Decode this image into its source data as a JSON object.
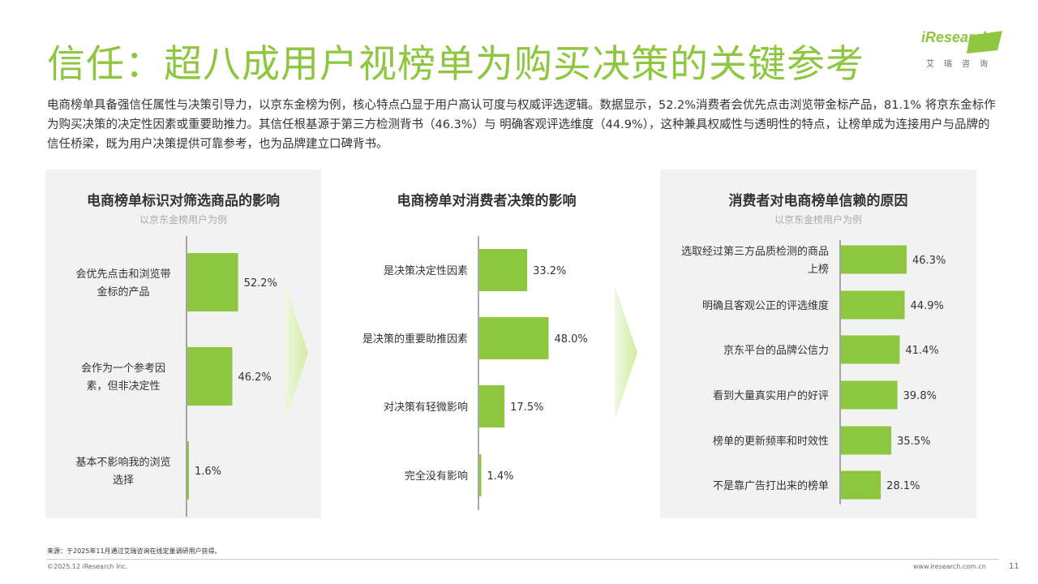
{
  "header": {
    "title": "信任：超八成用户视榜单为购买决策的关键参考",
    "logo_text": "iResearch",
    "logo_sub": "艾瑞咨询"
  },
  "intro": {
    "text": "电商榜单具备强信任属性与决策引导力，以京东金榜为例，核心特点凸显于用户高认可度与权威评选逻辑。数据显示，52.2%消费者会优先点击浏览带金标产品，81.1% 将京东金标作为购买决策的决定性因素或重要助推力。其信任根基源于第三方检测背书（46.3%）与 明确客观评选维度（44.9%），这种兼具权威性与透明性的特点，让榜单成为连接用户与品牌的信任桥梁，既为用户决策提供可靠参考，也为品牌建立口碑背书。"
  },
  "colors": {
    "accent": "#8dc63f",
    "panel_bg": "#f2f2f2"
  },
  "chart_data": [
    {
      "type": "bar",
      "title": "电商榜单标识对筛选商品的影响",
      "subtitle": "以京东金榜用户为例",
      "categories": [
        "会优先点击和浏览带金标的产品",
        "会作为一个参考因素，但非决定性",
        "基本不影响我的浏览选择"
      ],
      "category_lines": [
        [
          "会优先点击和浏览带",
          "金标的产品"
        ],
        [
          "会作为一个参考因",
          "素，但非决定性"
        ],
        [
          "基本不影响我的浏览",
          "选择"
        ]
      ],
      "values": [
        52.2,
        46.2,
        1.6
      ],
      "value_labels": [
        "52.2%",
        "46.2%",
        "1.6%"
      ],
      "unit": "%"
    },
    {
      "type": "bar",
      "title": "电商榜单对消费者决策的影响",
      "subtitle": "",
      "categories": [
        "是决策决定性因素",
        "是决策的重要助推因素",
        "对决策有轻微影响",
        "完全没有影响"
      ],
      "category_lines": [
        [
          "是决策决定性因素"
        ],
        [
          "是决策的重要助推因素"
        ],
        [
          "对决策有轻微影响"
        ],
        [
          "完全没有影响"
        ]
      ],
      "values": [
        33.2,
        48.0,
        17.5,
        1.4
      ],
      "value_labels": [
        "33.2%",
        "48.0%",
        "17.5%",
        "1.4%"
      ],
      "unit": "%"
    },
    {
      "type": "bar",
      "title": "消费者对电商榜单信赖的原因",
      "subtitle": "以京东金榜用户为例",
      "categories": [
        "选取经过第三方品质检测的商品上榜",
        "明确且客观公正的评选维度",
        "京东平台的品牌公信力",
        "看到大量真实用户的好评",
        "榜单的更新频率和时效性",
        "不是靠广告打出来的榜单"
      ],
      "category_lines": [
        [
          "选取经过第三方品质检测的商品",
          "上榜"
        ],
        [
          "明确且客观公正的评选维度"
        ],
        [
          "京东平台的品牌公信力"
        ],
        [
          "看到大量真实用户的好评"
        ],
        [
          "榜单的更新频率和时效性"
        ],
        [
          "不是靠广告打出来的榜单"
        ]
      ],
      "values": [
        46.3,
        44.9,
        41.4,
        39.8,
        35.5,
        28.1
      ],
      "value_labels": [
        "46.3%",
        "44.9%",
        "41.4%",
        "39.8%",
        "35.5%",
        "28.1%"
      ],
      "unit": "%"
    }
  ],
  "footer": {
    "source": "来源：于2025年11月通过艾瑞咨询在线定量调研用户获得。",
    "copyright": "©2025.12 iResearch Inc.",
    "website": "www.iresearch.com.cn",
    "page": "11"
  }
}
